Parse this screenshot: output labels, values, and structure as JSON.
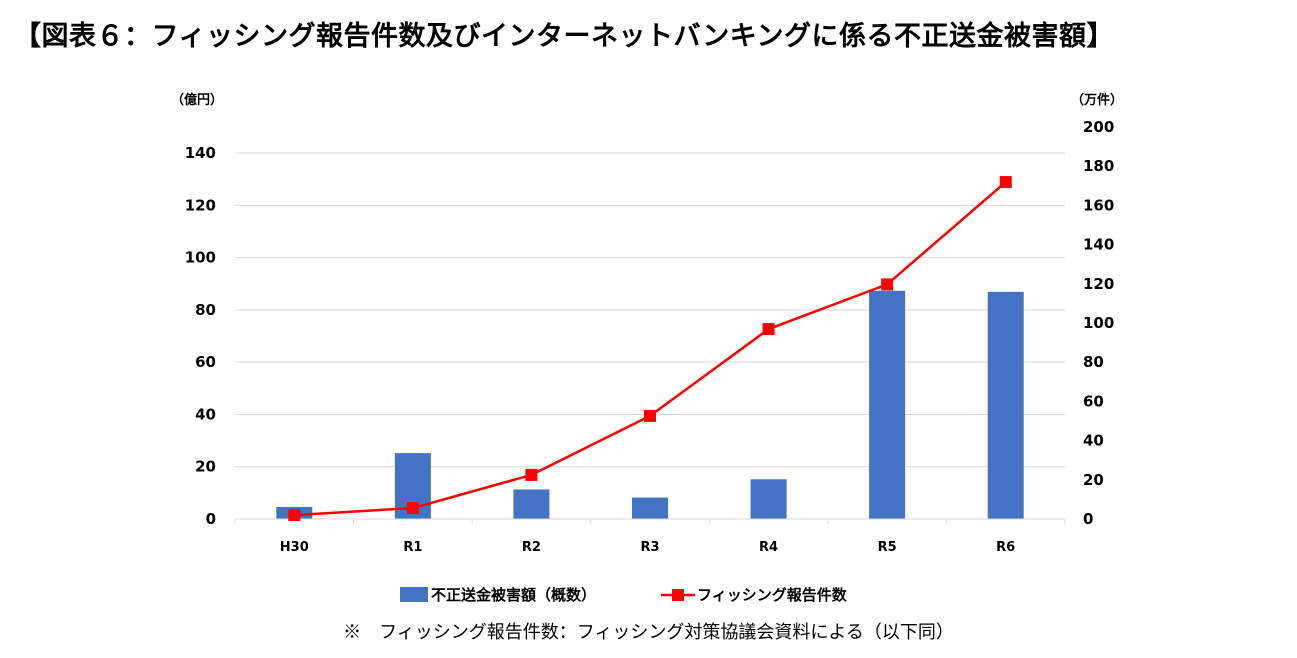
{
  "figure": {
    "title": "【図表６：フィッシング報告件数及びインターネットバンキングに係る不正送金被害額】",
    "footnote": "※　フィッシング報告件数：フィッシング対策協議会資料による（以下同）"
  },
  "chart_data": {
    "type": "bar+line",
    "categories": [
      "H30",
      "R1",
      "R2",
      "R3",
      "R4",
      "R5",
      "R6"
    ],
    "y_left": {
      "unit": "（億円）",
      "range": [
        0,
        140
      ],
      "ticks": [
        0,
        20,
        40,
        60,
        80,
        100,
        120,
        140
      ]
    },
    "y_right": {
      "unit": "（万件）",
      "range": [
        0,
        200
      ],
      "ticks": [
        0,
        20,
        40,
        60,
        80,
        100,
        120,
        140,
        160,
        180,
        200
      ]
    },
    "series": [
      {
        "name": "不正送金被害額（概数）",
        "kind": "bar",
        "axis": "left",
        "color": "#4472C4",
        "values": [
          4.6,
          25.2,
          11.3,
          8.2,
          15.2,
          87.3,
          86.9
        ]
      },
      {
        "name": "フィッシング報告件数",
        "kind": "line",
        "axis": "right",
        "color": "#FF0000",
        "marker": "square",
        "values": [
          2,
          5.6,
          22.5,
          52.6,
          96.9,
          119.7,
          171.9
        ]
      }
    ],
    "grid": true,
    "legend": "bottom-center"
  }
}
